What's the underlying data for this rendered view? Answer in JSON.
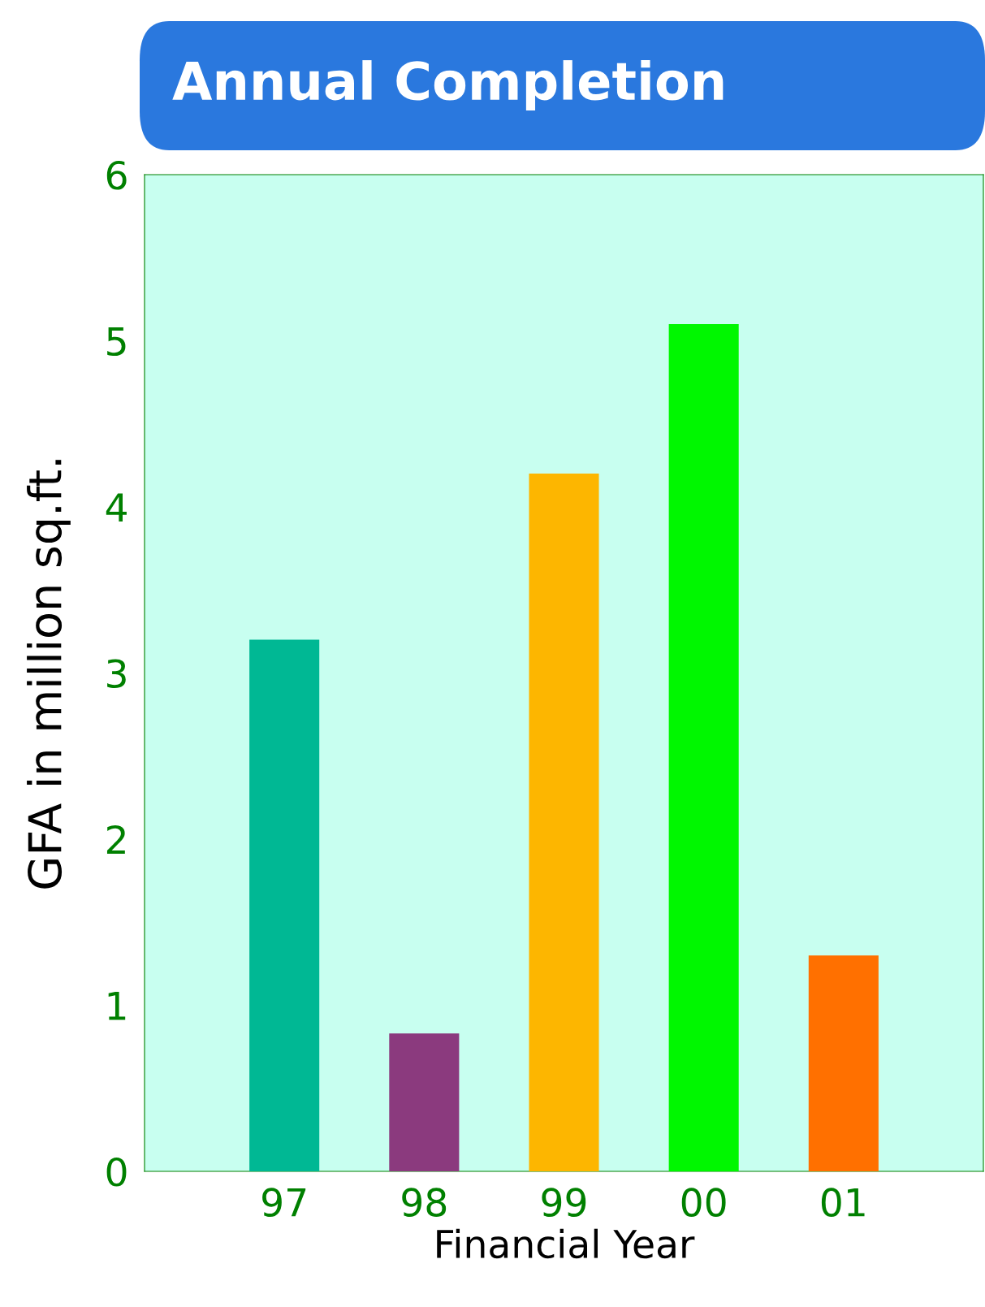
{
  "chart_data": {
    "type": "bar",
    "title": "Annual Completion",
    "xlabel": "Financial Year",
    "ylabel": "GFA in million sq.ft.",
    "categories": [
      "97",
      "98",
      "99",
      "00",
      "01"
    ],
    "values": [
      3.2,
      0.83,
      4.2,
      5.1,
      1.3
    ],
    "colors": [
      "#00b894",
      "#8b3a7e",
      "#fdb600",
      "#00f700",
      "#ff7000"
    ],
    "ylim": [
      0,
      6
    ],
    "yticks": [
      0,
      1,
      2,
      3,
      4,
      5,
      6
    ],
    "grid": false,
    "legend": false
  }
}
